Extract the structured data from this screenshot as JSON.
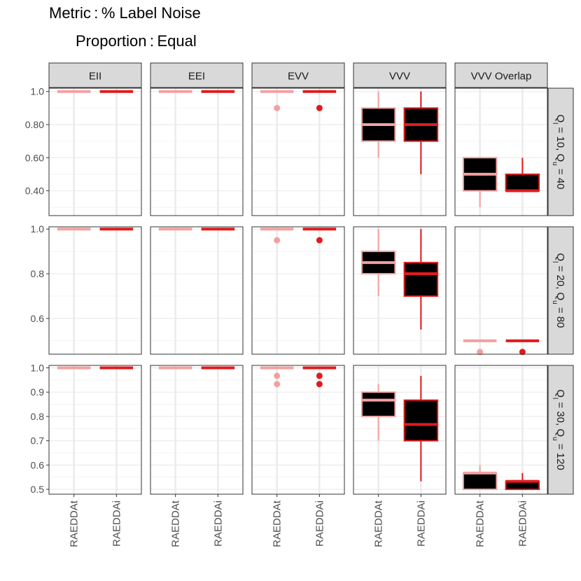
{
  "title": {
    "metric_label": "Metric",
    "metric_value": "% Label Noise",
    "proportion_label": "Proportion",
    "proportion_value": "Equal"
  },
  "colors": {
    "RAEDDAt": "#f4a0a0",
    "RAEDDAi": "#e31a1c",
    "box_fill": "#000000",
    "strip_fill": "#d9d9d9",
    "grid": "#ebebeb"
  },
  "chart_data": {
    "type": "boxplot",
    "columns": [
      "EII",
      "EEI",
      "EVV",
      "VVV",
      "VVV Overlap"
    ],
    "rows": [
      {
        "label_parts": [
          "Q",
          "l",
          " = 10,  Q",
          "u",
          " = 40"
        ],
        "ylim": [
          0.25,
          1.02
        ],
        "yticks": [
          0.4,
          0.6,
          0.8,
          1.0
        ],
        "yticklabels": [
          "0.40",
          "0.60",
          "0.80",
          "1.0"
        ]
      },
      {
        "label_parts": [
          "Q",
          "l",
          " = 20,  Q",
          "u",
          " = 80"
        ],
        "ylim": [
          0.44,
          1.01
        ],
        "yticks": [
          0.6,
          0.8,
          1.0
        ],
        "yticklabels": [
          "0.6",
          "0.8",
          "1.0"
        ]
      },
      {
        "label_parts": [
          "Q",
          "l",
          " = 30,  Q",
          "u",
          " = 120"
        ],
        "ylim": [
          0.48,
          1.01
        ],
        "yticks": [
          0.5,
          0.6,
          0.7,
          0.8,
          0.9,
          1.0
        ],
        "yticklabels": [
          "0.5",
          "0.6",
          "0.7",
          "0.8",
          "0.9",
          "1.0"
        ]
      }
    ],
    "categories": [
      "RAEDDAt",
      "RAEDDAi"
    ],
    "boxes": [
      [
        [
          {
            "min": 1,
            "q1": 1,
            "median": 1,
            "q3": 1,
            "max": 1,
            "outliers": []
          },
          {
            "min": 1,
            "q1": 1,
            "median": 1,
            "q3": 1,
            "max": 1,
            "outliers": []
          }
        ],
        [
          {
            "min": 1,
            "q1": 1,
            "median": 1,
            "q3": 1,
            "max": 1,
            "outliers": []
          },
          {
            "min": 1,
            "q1": 1,
            "median": 1,
            "q3": 1,
            "max": 1,
            "outliers": []
          }
        ],
        [
          {
            "min": 1,
            "q1": 1,
            "median": 1,
            "q3": 1,
            "max": 1,
            "outliers": [
              0.9
            ]
          },
          {
            "min": 1,
            "q1": 1,
            "median": 1,
            "q3": 1,
            "max": 1,
            "outliers": [
              0.9
            ]
          }
        ],
        [
          {
            "min": 0.6,
            "q1": 0.7,
            "median": 0.8,
            "q3": 0.9,
            "max": 1.0,
            "outliers": []
          },
          {
            "min": 0.5,
            "q1": 0.7,
            "median": 0.8,
            "q3": 0.9,
            "max": 1.0,
            "outliers": []
          }
        ],
        [
          {
            "min": 0.3,
            "q1": 0.4,
            "median": 0.5,
            "q3": 0.6,
            "max": 0.6,
            "outliers": []
          },
          {
            "min": 0.4,
            "q1": 0.4,
            "median": 0.4,
            "q3": 0.5,
            "max": 0.6,
            "outliers": []
          }
        ]
      ],
      [
        [
          {
            "min": 1,
            "q1": 1,
            "median": 1,
            "q3": 1,
            "max": 1,
            "outliers": []
          },
          {
            "min": 1,
            "q1": 1,
            "median": 1,
            "q3": 1,
            "max": 1,
            "outliers": []
          }
        ],
        [
          {
            "min": 1,
            "q1": 1,
            "median": 1,
            "q3": 1,
            "max": 1,
            "outliers": []
          },
          {
            "min": 1,
            "q1": 1,
            "median": 1,
            "q3": 1,
            "max": 1,
            "outliers": []
          }
        ],
        [
          {
            "min": 1,
            "q1": 1,
            "median": 1,
            "q3": 1,
            "max": 1,
            "outliers": [
              0.95
            ]
          },
          {
            "min": 1,
            "q1": 1,
            "median": 1,
            "q3": 1,
            "max": 1,
            "outliers": [
              0.95
            ]
          }
        ],
        [
          {
            "min": 0.7,
            "q1": 0.8,
            "median": 0.85,
            "q3": 0.9,
            "max": 1.0,
            "outliers": []
          },
          {
            "min": 0.55,
            "q1": 0.7,
            "median": 0.8,
            "q3": 0.85,
            "max": 1.0,
            "outliers": []
          }
        ],
        [
          {
            "min": 0.5,
            "q1": 0.5,
            "median": 0.5,
            "q3": 0.5,
            "max": 0.5,
            "outliers": [
              0.45
            ]
          },
          {
            "min": 0.5,
            "q1": 0.5,
            "median": 0.5,
            "q3": 0.5,
            "max": 0.5,
            "outliers": [
              0.45
            ]
          }
        ]
      ],
      [
        [
          {
            "min": 1,
            "q1": 1,
            "median": 1,
            "q3": 1,
            "max": 1,
            "outliers": []
          },
          {
            "min": 1,
            "q1": 1,
            "median": 1,
            "q3": 1,
            "max": 1,
            "outliers": []
          }
        ],
        [
          {
            "min": 1,
            "q1": 1,
            "median": 1,
            "q3": 1,
            "max": 1,
            "outliers": []
          },
          {
            "min": 1,
            "q1": 1,
            "median": 1,
            "q3": 1,
            "max": 1,
            "outliers": []
          }
        ],
        [
          {
            "min": 1,
            "q1": 1,
            "median": 1,
            "q3": 1,
            "max": 1,
            "outliers": [
              0.967,
              0.933
            ]
          },
          {
            "min": 1,
            "q1": 1,
            "median": 1,
            "q3": 1,
            "max": 1,
            "outliers": [
              0.967,
              0.933
            ]
          }
        ],
        [
          {
            "min": 0.7,
            "q1": 0.8,
            "median": 0.867,
            "q3": 0.9,
            "max": 0.933,
            "outliers": []
          },
          {
            "min": 0.533,
            "q1": 0.7,
            "median": 0.767,
            "q3": 0.867,
            "max": 0.967,
            "outliers": []
          }
        ],
        [
          {
            "min": 0.5,
            "q1": 0.5,
            "median": 0.567,
            "q3": 0.567,
            "max": 0.6,
            "outliers": []
          },
          {
            "min": 0.5,
            "q1": 0.5,
            "median": 0.533,
            "q3": 0.533,
            "max": 0.567,
            "outliers": []
          }
        ]
      ]
    ]
  }
}
